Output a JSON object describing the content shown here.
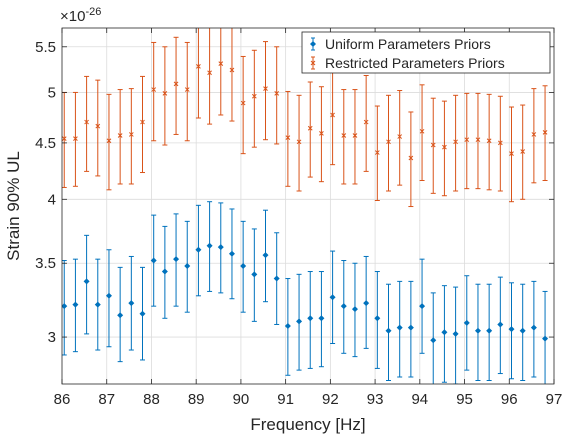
{
  "chart_data": {
    "type": "scatter",
    "title": "",
    "xlabel": "Frequency [Hz]",
    "ylabel": "Strain 90% UL",
    "y_exponent_label": "×10",
    "y_exponent_power": "-26",
    "xlim": [
      86,
      97
    ],
    "ylim": [
      2.72,
      5.72
    ],
    "y_scale": "log",
    "grid": true,
    "legend_position": "top-right",
    "xticks": [
      86,
      87,
      88,
      89,
      90,
      91,
      92,
      93,
      94,
      95,
      96,
      97
    ],
    "xtick_labels": [
      "86",
      "87",
      "88",
      "89",
      "90",
      "91",
      "92",
      "93",
      "94",
      "95",
      "96",
      "97"
    ],
    "yticks": [
      3,
      3.5,
      4,
      4.5,
      5,
      5.5
    ],
    "ytick_labels": [
      "3",
      "3.5",
      "4",
      "4.5",
      "5",
      "5.5"
    ],
    "x": [
      86.05,
      86.3,
      86.55,
      86.8,
      87.05,
      87.3,
      87.55,
      87.8,
      88.05,
      88.3,
      88.55,
      88.8,
      89.05,
      89.3,
      89.55,
      89.8,
      90.05,
      90.3,
      90.55,
      90.8,
      91.05,
      91.3,
      91.55,
      91.8,
      92.05,
      92.3,
      92.55,
      92.8,
      93.05,
      93.3,
      93.55,
      93.8,
      94.05,
      94.3,
      94.55,
      94.8,
      95.05,
      95.3,
      95.55,
      95.8,
      96.05,
      96.3,
      96.55,
      96.8
    ],
    "series": [
      {
        "name": "Uniform Parameters Priors",
        "color": "#0072BD",
        "marker": "diamond",
        "values": [
          3.2,
          3.21,
          3.37,
          3.21,
          3.27,
          3.14,
          3.22,
          3.15,
          3.52,
          3.44,
          3.53,
          3.48,
          3.6,
          3.63,
          3.62,
          3.57,
          3.48,
          3.42,
          3.56,
          3.39,
          3.07,
          3.1,
          3.12,
          3.12,
          3.26,
          3.2,
          3.18,
          3.22,
          3.12,
          3.04,
          3.06,
          3.06,
          3.2,
          2.98,
          3.03,
          3.02,
          3.09,
          3.04,
          3.04,
          3.08,
          3.05,
          3.04,
          3.06,
          2.99
        ],
        "lower": [
          2.89,
          2.91,
          3.02,
          2.92,
          2.94,
          2.85,
          2.92,
          2.86,
          3.2,
          3.12,
          3.2,
          3.16,
          3.27,
          3.3,
          3.29,
          3.25,
          3.16,
          3.1,
          3.23,
          3.08,
          2.77,
          2.8,
          2.81,
          2.82,
          2.96,
          2.9,
          2.88,
          2.93,
          2.81,
          2.74,
          2.76,
          2.76,
          2.9,
          2.68,
          2.73,
          2.72,
          2.8,
          2.74,
          2.74,
          2.78,
          2.75,
          2.74,
          2.76,
          2.68
        ],
        "upper": [
          3.52,
          3.53,
          3.71,
          3.53,
          3.6,
          3.47,
          3.55,
          3.47,
          3.87,
          3.78,
          3.88,
          3.82,
          3.95,
          3.98,
          3.97,
          3.92,
          3.82,
          3.76,
          3.91,
          3.73,
          3.39,
          3.42,
          3.44,
          3.44,
          3.59,
          3.52,
          3.5,
          3.55,
          3.44,
          3.35,
          3.37,
          3.37,
          3.53,
          3.29,
          3.34,
          3.33,
          3.41,
          3.35,
          3.35,
          3.4,
          3.36,
          3.35,
          3.37,
          3.3
        ]
      },
      {
        "name": "Restricted Parameters Priors",
        "color": "#D95319",
        "marker": "x",
        "values": [
          4.54,
          4.54,
          4.7,
          4.66,
          4.52,
          4.57,
          4.58,
          4.7,
          5.03,
          4.99,
          5.09,
          5.03,
          5.28,
          5.21,
          5.31,
          5.24,
          4.89,
          4.96,
          5.04,
          4.99,
          4.55,
          4.51,
          4.64,
          4.59,
          4.77,
          4.57,
          4.57,
          4.7,
          4.41,
          4.51,
          4.56,
          4.36,
          4.61,
          4.48,
          4.46,
          4.51,
          4.53,
          4.53,
          4.52,
          4.5,
          4.4,
          4.42,
          4.58,
          4.6
        ],
        "lower": [
          4.1,
          4.11,
          4.24,
          4.2,
          4.08,
          4.13,
          4.13,
          4.23,
          4.52,
          4.48,
          4.58,
          4.52,
          4.74,
          4.68,
          4.77,
          4.71,
          4.4,
          4.46,
          4.53,
          4.49,
          4.11,
          4.07,
          4.19,
          4.15,
          4.3,
          4.13,
          4.13,
          4.24,
          3.99,
          4.07,
          4.12,
          3.94,
          4.16,
          4.05,
          4.03,
          4.07,
          4.09,
          4.09,
          4.08,
          4.07,
          3.98,
          4.0,
          4.14,
          4.16
        ],
        "upper": [
          5.0,
          5.0,
          5.17,
          5.13,
          4.98,
          5.03,
          5.04,
          5.17,
          5.55,
          5.5,
          5.61,
          5.55,
          5.82,
          5.74,
          5.85,
          5.78,
          5.39,
          5.46,
          5.56,
          5.5,
          5.01,
          4.97,
          5.11,
          5.06,
          5.26,
          5.03,
          5.03,
          5.18,
          4.86,
          4.97,
          5.02,
          4.8,
          5.08,
          4.94,
          4.91,
          4.97,
          4.99,
          4.99,
          4.98,
          4.96,
          4.85,
          4.87,
          5.04,
          5.07
        ]
      }
    ]
  }
}
